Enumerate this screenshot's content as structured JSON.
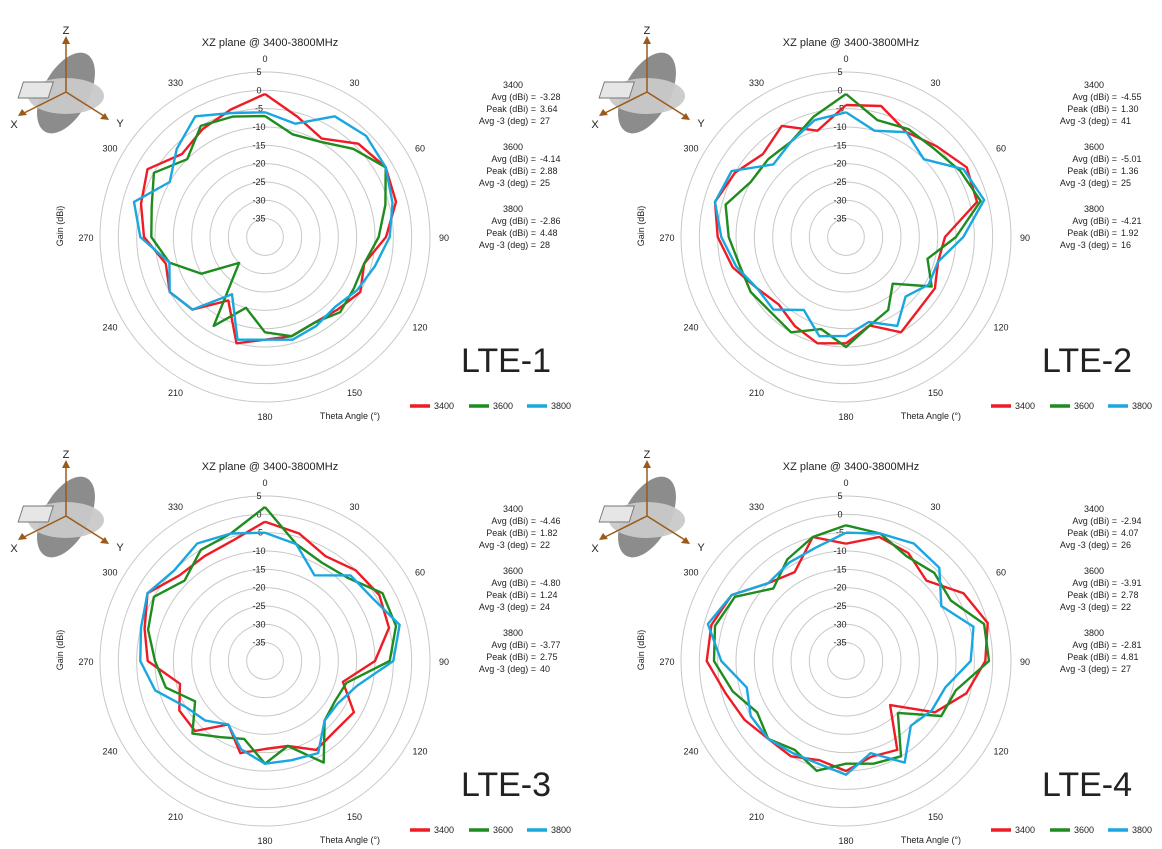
{
  "chart_data": [
    {
      "type": "polar-line",
      "title": "XZ plane @ 3400-3800MHz",
      "label": "LTE-1",
      "xlabel": "Theta Angle (°)",
      "ylabel": "Gain (dBi)",
      "rlim": [
        -40,
        5
      ],
      "r_ticks": [
        "5",
        "0",
        "-5",
        "-10",
        "-15",
        "-20",
        "-25",
        "-30",
        "-35"
      ],
      "angle_ticks": [
        "0",
        "30",
        "60",
        "90",
        "120",
        "150",
        "180",
        "210",
        "240",
        "270",
        "300",
        "330"
      ],
      "legend": [
        "3400",
        "3600",
        "3800"
      ],
      "colors": {
        "3400": "#ee1c25",
        "3600": "#1e8c1e",
        "3800": "#1aa7e0"
      },
      "stats": [
        {
          "freq": "3400",
          "avg": "-3.28",
          "peak": "3.64",
          "bw": "27"
        },
        {
          "freq": "3600",
          "avg": "-4.14",
          "peak": "2.88",
          "bw": "25"
        },
        {
          "freq": "3800",
          "avg": "-2.86",
          "peak": "4.48",
          "bw": "28"
        }
      ],
      "stat_labels": {
        "avg": "Avg (dBi) =",
        "peak": "Peak (dBi) =",
        "bw": "Avg -3 (deg) ="
      },
      "theta": [
        0,
        15,
        30,
        45,
        60,
        75,
        90,
        105,
        120,
        135,
        150,
        165,
        180,
        195,
        210,
        225,
        240,
        255,
        270,
        285,
        300,
        315,
        330,
        345
      ],
      "series": [
        {
          "name": "3400",
          "values": [
            -1,
            -6,
            -9,
            -4,
            -2,
            -3,
            -7,
            -12,
            -10,
            -12,
            -13,
            -12,
            -12,
            -10,
            -20,
            -12,
            -10,
            -12,
            -7,
            -5,
            -3,
            -8,
            -6,
            -4
          ]
        },
        {
          "name": "3600",
          "values": [
            -7,
            -11,
            -10,
            -6,
            -2,
            -6,
            -9,
            -12,
            -12,
            -11,
            -13,
            -12,
            -14,
            -20,
            -12,
            -30,
            -20,
            -13,
            -9,
            -8,
            -5,
            -10,
            -5,
            -6
          ]
        },
        {
          "name": "3800",
          "values": [
            -6,
            -8,
            -2,
            -1,
            -2,
            -4,
            -6,
            -9,
            -11,
            -13,
            -12,
            -11,
            -12,
            -11,
            -22,
            -12,
            -10,
            -13,
            -6,
            -3,
            -10,
            -6,
            -2,
            -5
          ]
        }
      ]
    },
    {
      "type": "polar-line",
      "title": "XZ plane @ 3400-3800MHz",
      "label": "LTE-2",
      "xlabel": "Theta Angle (°)",
      "ylabel": "Gain (dBi)",
      "rlim": [
        -40,
        5
      ],
      "r_ticks": [
        "5",
        "0",
        "-5",
        "-10",
        "-15",
        "-20",
        "-25",
        "-30",
        "-35"
      ],
      "angle_ticks": [
        "0",
        "30",
        "60",
        "90",
        "120",
        "150",
        "180",
        "210",
        "240",
        "270",
        "300",
        "330"
      ],
      "legend": [
        "3400",
        "3600",
        "3800"
      ],
      "colors": {
        "3400": "#ee1c25",
        "3600": "#1e8c1e",
        "3800": "#1aa7e0"
      },
      "stats": [
        {
          "freq": "3400",
          "avg": "-4.55",
          "peak": "1.30",
          "bw": "41"
        },
        {
          "freq": "3600",
          "avg": "-5.01",
          "peak": "1.36",
          "bw": "25"
        },
        {
          "freq": "3800",
          "avg": "-4.21",
          "peak": "1.92",
          "bw": "16"
        }
      ],
      "stat_labels": {
        "avg": "Avg (dBi) =",
        "peak": "Peak (dBi) =",
        "bw": "Avg -3 (deg) ="
      },
      "theta": [
        0,
        15,
        30,
        45,
        60,
        75,
        90,
        105,
        120,
        135,
        150,
        165,
        180,
        195,
        210,
        225,
        240,
        255,
        270,
        285,
        300,
        315,
        330,
        345
      ],
      "series": [
        {
          "name": "3400",
          "values": [
            -4,
            -3,
            -7,
            -5,
            -2,
            -3,
            -13,
            -14,
            -12,
            -12,
            -10,
            -15,
            -11,
            -10,
            -12,
            -14,
            -12,
            -8,
            -5,
            -3,
            -5,
            -8,
            -5,
            -10
          ]
        },
        {
          "name": "3600",
          "values": [
            -1,
            -7,
            -6,
            -6,
            -4,
            -2,
            -10,
            -17,
            -13,
            -22,
            -17,
            -15,
            -10,
            -14,
            -10,
            -11,
            -10,
            -10,
            -8,
            -6,
            -10,
            -10,
            -10,
            -6
          ]
        },
        {
          "name": "3800",
          "values": [
            -6,
            -10,
            -7,
            -10,
            -3,
            -1,
            -8,
            -14,
            -14,
            -17,
            -12,
            -16,
            -13,
            -12,
            -17,
            -12,
            -12,
            -9,
            -6,
            -3,
            -4,
            -12,
            -10,
            -7
          ]
        }
      ]
    },
    {
      "type": "polar-line",
      "title": "XZ plane @ 3400-3800MHz",
      "label": "LTE-3",
      "xlabel": "Theta Angle (°)",
      "ylabel": "Gain (dBi)",
      "rlim": [
        -40,
        5
      ],
      "r_ticks": [
        "5",
        "0",
        "-5",
        "-10",
        "-15",
        "-20",
        "-25",
        "-30",
        "-35"
      ],
      "angle_ticks": [
        "0",
        "30",
        "60",
        "90",
        "120",
        "150",
        "180",
        "210",
        "240",
        "270",
        "300",
        "330"
      ],
      "legend": [
        "3400",
        "3600",
        "3800"
      ],
      "colors": {
        "3400": "#ee1c25",
        "3600": "#1e8c1e",
        "3800": "#1aa7e0"
      },
      "stats": [
        {
          "freq": "3400",
          "avg": "-4.46",
          "peak": "1.82",
          "bw": "22"
        },
        {
          "freq": "3600",
          "avg": "-4.80",
          "peak": "1.24",
          "bw": "24"
        },
        {
          "freq": "3800",
          "avg": "-3.77",
          "peak": "2.75",
          "bw": "40"
        }
      ],
      "stat_labels": {
        "avg": "Avg (dBi) =",
        "peak": "Peak (dBi) =",
        "bw": "Avg -3 (deg) ="
      },
      "theta": [
        0,
        15,
        30,
        45,
        60,
        75,
        90,
        105,
        120,
        135,
        150,
        165,
        180,
        195,
        210,
        225,
        240,
        255,
        270,
        285,
        300,
        315,
        330,
        345
      ],
      "series": [
        {
          "name": "3400",
          "values": [
            -2,
            -4,
            -7,
            -5,
            -4,
            -5,
            -10,
            -18,
            -12,
            -13,
            -12,
            -16,
            -16,
            -14,
            -20,
            -13,
            -13,
            -16,
            -8,
            -6,
            -3,
            -7,
            -7,
            -6
          ]
        },
        {
          "name": "3600",
          "values": [
            2,
            -7,
            -9,
            -8,
            -3,
            -3,
            -6,
            -17,
            -18,
            -17,
            -8,
            -16,
            -12,
            -18,
            -16,
            -12,
            -18,
            -12,
            -10,
            -7,
            -5,
            -9,
            -5,
            -4
          ]
        },
        {
          "name": "3800",
          "values": [
            -5,
            -7,
            -13,
            -7,
            -6,
            -2,
            -5,
            -14,
            -17,
            -17,
            -11,
            -12,
            -12,
            -15,
            -20,
            -17,
            -15,
            -9,
            -6,
            -5,
            -3,
            -5,
            -3,
            -4
          ]
        }
      ]
    },
    {
      "type": "polar-line",
      "title": "XZ plane @ 3400-3800MHz",
      "label": "LTE-4",
      "xlabel": "Theta Angle (°)",
      "ylabel": "Gain (dBi)",
      "rlim": [
        -40,
        5
      ],
      "r_ticks": [
        "5",
        "0",
        "-5",
        "-10",
        "-15",
        "-20",
        "-25",
        "-30",
        "-35"
      ],
      "angle_ticks": [
        "0",
        "30",
        "60",
        "90",
        "120",
        "150",
        "180",
        "210",
        "240",
        "270",
        "300",
        "330"
      ],
      "legend": [
        "3400",
        "3600",
        "3800"
      ],
      "colors": {
        "3400": "#ee1c25",
        "3600": "#1e8c1e",
        "3800": "#1aa7e0"
      },
      "stats": [
        {
          "freq": "3400",
          "avg": "-2.94",
          "peak": "4.07",
          "bw": "26"
        },
        {
          "freq": "3600",
          "avg": "-3.91",
          "peak": "2.78",
          "bw": "22"
        },
        {
          "freq": "3800",
          "avg": "-2.81",
          "peak": "4.81",
          "bw": "27"
        }
      ],
      "stat_labels": {
        "avg": "Avg (dBi) =",
        "peak": "Peak (dBi) =",
        "bw": "Avg -3 (deg) ="
      },
      "theta": [
        0,
        15,
        30,
        45,
        60,
        75,
        90,
        105,
        120,
        135,
        150,
        165,
        180,
        195,
        210,
        225,
        240,
        255,
        270,
        285,
        300,
        315,
        330,
        345
      ],
      "series": [
        {
          "name": "3400",
          "values": [
            -8,
            -5,
            -6,
            -9,
            -3,
            0,
            -2,
            -6,
            -12,
            -23,
            -12,
            -13,
            -10,
            -12,
            -10,
            -10,
            -8,
            -6,
            -2,
            -2,
            -4,
            -10,
            -12,
            -5
          ]
        },
        {
          "name": "3600",
          "values": [
            -3,
            -4,
            -7,
            -6,
            -7,
            -1,
            -1,
            -9,
            -10,
            -20,
            -10,
            -11,
            -12,
            -9,
            -12,
            -10,
            -12,
            -8,
            -4,
            -3,
            -5,
            -12,
            -8,
            -5
          ]
        },
        {
          "name": "3800",
          "values": [
            -5,
            -4,
            -3,
            -4,
            -10,
            -4,
            -6,
            -12,
            -13,
            -15,
            -8,
            -14,
            -9,
            -11,
            -11,
            -10,
            -10,
            -12,
            -6,
            -1,
            -4,
            -10,
            -9,
            -8
          ]
        }
      ]
    }
  ]
}
